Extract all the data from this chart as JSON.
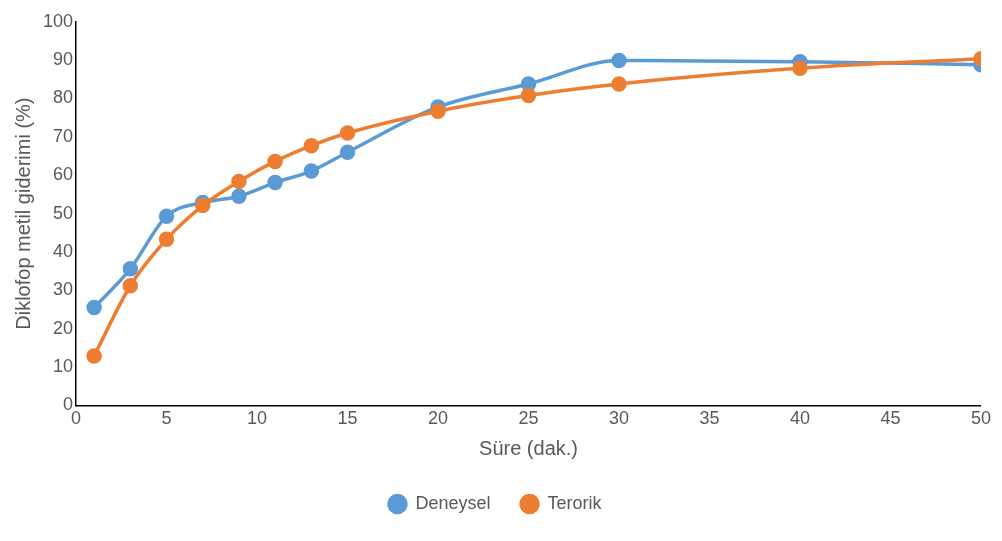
{
  "chart_data": {
    "type": "line",
    "xlabel": "Süre (dak.)",
    "ylabel": "Diklofop metil giderimi (%)",
    "x": [
      1,
      3,
      5,
      7,
      9,
      11,
      13,
      15,
      20,
      25,
      30,
      40,
      50
    ],
    "series": [
      {
        "name": "Deneysel",
        "color": "#5b9bd5",
        "values": [
          25.5,
          35.6,
          49.3,
          52.9,
          54.5,
          58.1,
          61.1,
          66,
          77.8,
          83.8,
          89.9,
          89.6,
          88.8
        ]
      },
      {
        "name": "Terorik",
        "color": "#ed7d31",
        "values": [
          12.9,
          31.2,
          43.3,
          52.1,
          58.4,
          63.6,
          67.7,
          71,
          76.7,
          80.8,
          83.8,
          87.9,
          90.4
        ]
      }
    ],
    "xlim": [
      0,
      50
    ],
    "xticks": [
      0,
      5,
      10,
      15,
      20,
      25,
      30,
      35,
      40,
      45,
      50
    ],
    "ylim": [
      0,
      100
    ],
    "yticks": [
      0,
      10,
      20,
      30,
      40,
      50,
      60,
      70,
      80,
      90,
      100
    ],
    "grid": false,
    "legend": "bottom",
    "marker": "circle",
    "line_style": "solid"
  }
}
